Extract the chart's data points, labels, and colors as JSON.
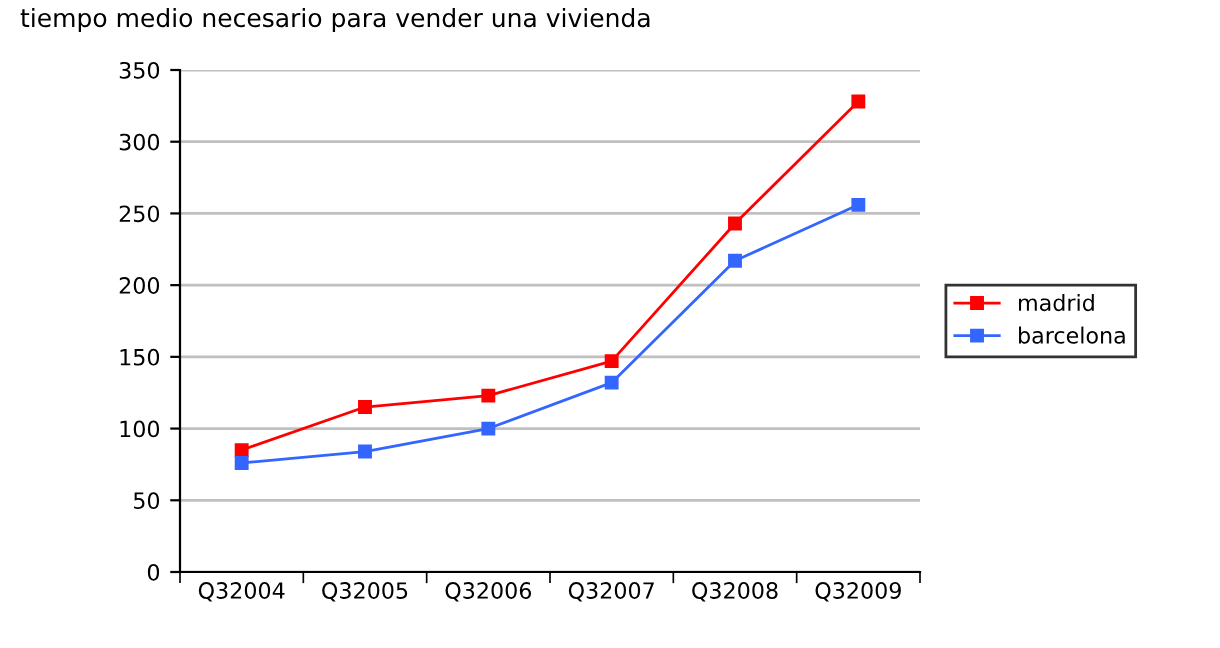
{
  "chart_data": {
    "type": "line",
    "title": "tiempo medio necesario para vender una vivienda",
    "categories": [
      "Q32004",
      "Q32005",
      "Q32006",
      "Q32007",
      "Q32008",
      "Q32009"
    ],
    "series": [
      {
        "name": "madrid",
        "color": "#ff0000",
        "values": [
          85,
          115,
          123,
          147,
          243,
          328
        ]
      },
      {
        "name": "barcelona",
        "color": "#3366ff",
        "values": [
          76,
          84,
          100,
          132,
          217,
          256
        ]
      }
    ],
    "ylim": [
      0,
      350
    ],
    "yticks": [
      0,
      50,
      100,
      150,
      200,
      250,
      300,
      350
    ],
    "grid": "y",
    "legend": "right",
    "marker": "square",
    "line_style": "solid"
  }
}
